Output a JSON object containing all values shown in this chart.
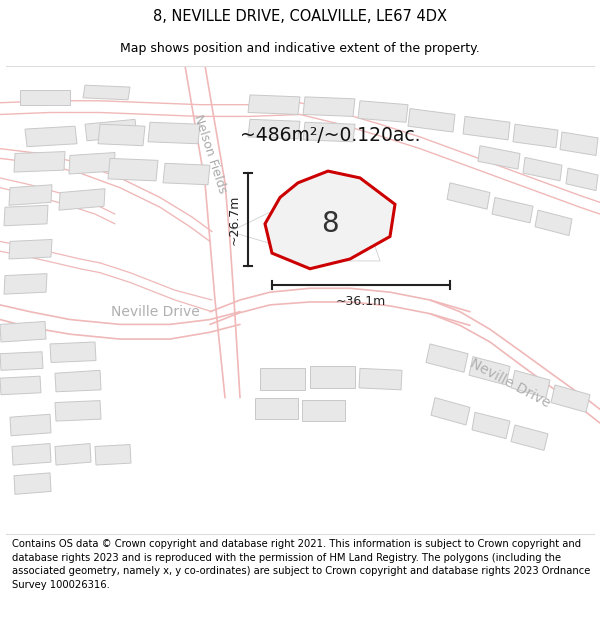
{
  "title": "8, NEVILLE DRIVE, COALVILLE, LE67 4DX",
  "subtitle": "Map shows position and indicative extent of the property.",
  "footer": "Contains OS data © Crown copyright and database right 2021. This information is subject to Crown copyright and database rights 2023 and is reproduced with the permission of HM Land Registry. The polygons (including the associated geometry, namely x, y co-ordinates) are subject to Crown copyright and database rights 2023 Ordnance Survey 100026316.",
  "map_bg": "#ffffff",
  "road_line_color": "#f0b8b8",
  "parcel_line_color": "#d0d0d0",
  "building_color": "#e8e8e8",
  "building_edge_color": "#c8c8c8",
  "plot_fill_color": "#f2f2f2",
  "plot_edge_color": "#cc0000",
  "plot_label": "8",
  "area_label": "~486m²/~0.120ac.",
  "dim_label_h": "~26.7m",
  "dim_label_w": "~36.1m",
  "street_label_nf": "Nelson Fields",
  "street_label_nd1": "Neville Drive",
  "street_label_nd2": "Neville Drive",
  "title_fontsize": 10.5,
  "subtitle_fontsize": 9,
  "footer_fontsize": 7.2
}
